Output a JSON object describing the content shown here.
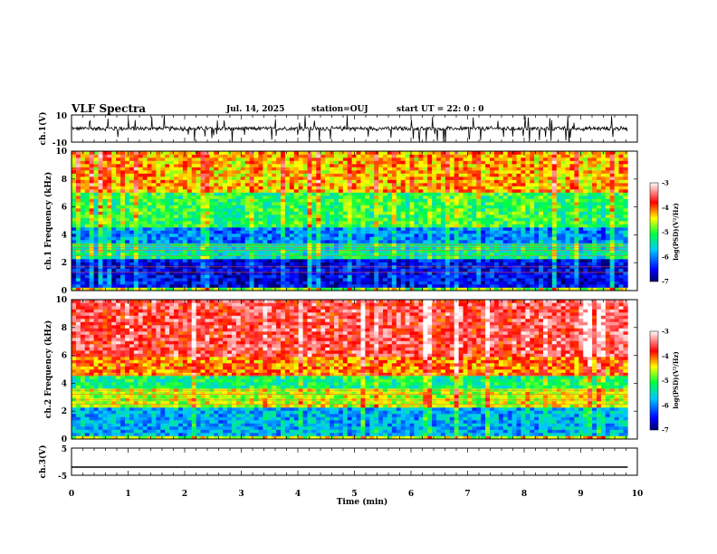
{
  "header": {
    "title": "VLF Spectra",
    "date": "Jul. 14, 2025",
    "station": "station=OUJ",
    "start_time": "start UT =  22: 0  : 0"
  },
  "colors": {
    "background": "#ffffff",
    "axes": "#000000",
    "colormap": [
      "#00007f",
      "#0000ff",
      "#00ffff",
      "#00ff00",
      "#ffff00",
      "#ff0000",
      "#ffffff"
    ]
  },
  "chart_data": [
    {
      "type": "line",
      "panel": "ch1-waveform",
      "ylabel": "ch.1(V)",
      "ylim": [
        -10,
        10
      ],
      "yticks": [
        "10",
        "-10"
      ],
      "xlim": [
        0,
        10
      ],
      "baseline": 0,
      "description_level": "noisy trace around zero with spikes up to about +10 and down to about -10"
    },
    {
      "type": "heatmap",
      "panel": "ch1-spectrogram",
      "ylabel": "ch.1 Frequency (kHz)",
      "ylim": [
        0,
        10
      ],
      "yticks": [
        "0",
        "2",
        "4",
        "6",
        "8",
        "10"
      ],
      "xlim": [
        0,
        9.83
      ],
      "bands": [
        {
          "from": 0,
          "to": 0.3,
          "level": -4.8
        },
        {
          "from": 0.3,
          "to": 2.3,
          "level": -6.6
        },
        {
          "from": 2.3,
          "to": 3.4,
          "level": -5.4
        },
        {
          "from": 3.4,
          "to": 4.6,
          "level": -6.0
        },
        {
          "from": 4.6,
          "to": 7.0,
          "level": -5.1
        },
        {
          "from": 7.0,
          "to": 10.0,
          "level": -4.3
        }
      ],
      "colorbar": {
        "label": "log(PSD)(V²/Hz)",
        "range": [
          -7,
          -3
        ],
        "ticks": [
          "-3",
          "-4",
          "-5",
          "-6",
          "-7"
        ]
      }
    },
    {
      "type": "heatmap",
      "panel": "ch2-spectrogram",
      "ylabel": "ch.2 Frequency (kHz)",
      "ylim": [
        0,
        10
      ],
      "yticks": [
        "0",
        "2",
        "4",
        "6",
        "8",
        "10"
      ],
      "xlim": [
        0,
        9.83
      ],
      "bands": [
        {
          "from": 0,
          "to": 0.3,
          "level": -4.6
        },
        {
          "from": 0.3,
          "to": 2.3,
          "level": -5.8
        },
        {
          "from": 2.3,
          "to": 3.6,
          "level": -4.6
        },
        {
          "from": 3.6,
          "to": 4.6,
          "level": -5.2
        },
        {
          "from": 4.6,
          "to": 6.0,
          "level": -4.1
        },
        {
          "from": 6.0,
          "to": 10.0,
          "level": -3.6
        }
      ],
      "colorbar": {
        "label": "log(PSD)(V²/Hz)",
        "range": [
          -7,
          -3
        ],
        "ticks": [
          "-3",
          "-4",
          "-5",
          "-6",
          "-7"
        ]
      }
    },
    {
      "type": "line",
      "panel": "ch3-waveform",
      "ylabel": "ch.3(V)",
      "ylim": [
        -5,
        5
      ],
      "yticks": [
        "5",
        "-5"
      ],
      "xlim": [
        0,
        9.83
      ],
      "value": -2
    }
  ],
  "xaxis": {
    "label": "Time (min)",
    "ticks": [
      "0",
      "1",
      "2",
      "3",
      "4",
      "5",
      "6",
      "7",
      "8",
      "9",
      "10"
    ],
    "range": [
      0,
      10
    ]
  }
}
